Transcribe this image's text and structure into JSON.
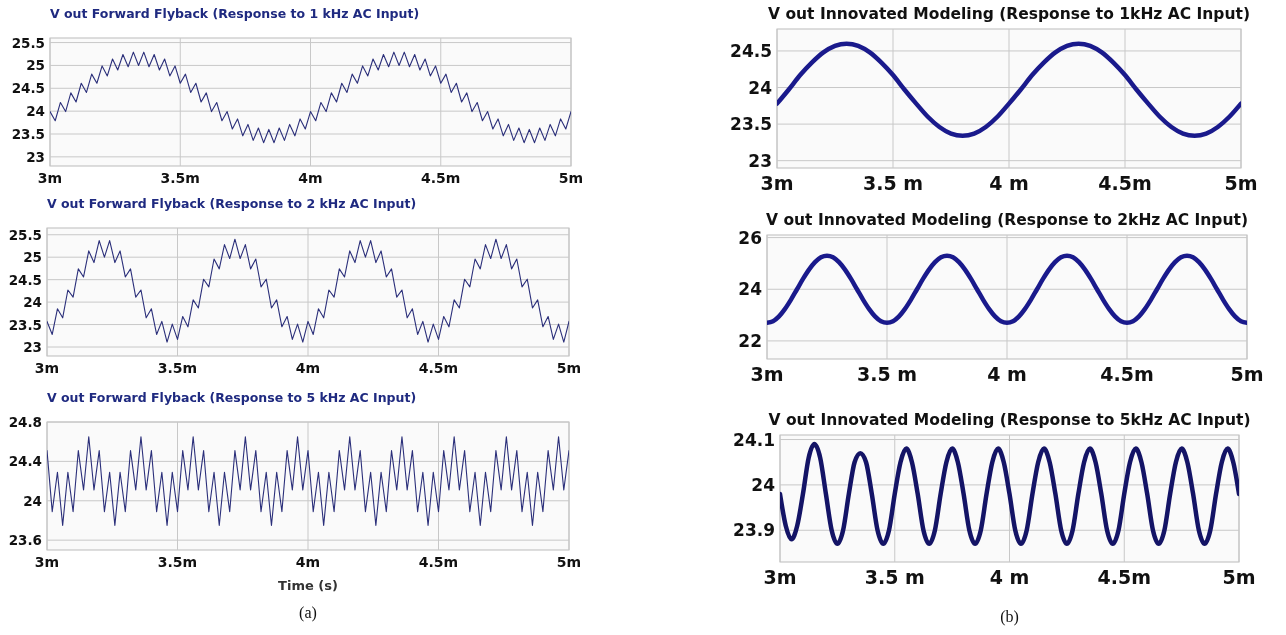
{
  "chart_data": [
    {
      "type": "line",
      "title": "V out Forward Flyback (Response to 1 kHz AC Input)",
      "grid": true,
      "xlim": [
        3,
        5
      ],
      "ylim": [
        22.8,
        25.6
      ],
      "xticks": [
        {
          "value": 3,
          "label": "3m"
        },
        {
          "value": 3.5,
          "label": "3.5m"
        },
        {
          "value": 4,
          "label": "4m"
        },
        {
          "value": 4.5,
          "label": "4.5m"
        },
        {
          "value": 5,
          "label": "5m"
        }
      ],
      "yticks": [
        23,
        23.5,
        24,
        24.5,
        25,
        25.5
      ],
      "x": [
        3,
        3.02,
        3.04,
        3.06,
        3.08,
        3.1,
        3.12,
        3.14,
        3.16,
        3.18,
        3.2,
        3.22,
        3.24,
        3.26,
        3.28,
        3.3,
        3.32,
        3.34,
        3.36,
        3.38,
        3.4,
        3.42,
        3.44,
        3.46,
        3.48,
        3.5,
        3.52,
        3.54,
        3.56,
        3.58,
        3.6,
        3.62,
        3.64,
        3.66,
        3.68,
        3.7,
        3.72,
        3.74,
        3.76,
        3.78,
        3.8,
        3.82,
        3.84,
        3.86,
        3.88,
        3.9,
        3.92,
        3.94,
        3.96,
        3.98,
        4,
        4.02,
        4.04,
        4.06,
        4.08,
        4.1,
        4.12,
        4.14,
        4.16,
        4.18,
        4.2,
        4.22,
        4.24,
        4.26,
        4.28,
        4.3,
        4.32,
        4.34,
        4.36,
        4.38,
        4.4,
        4.42,
        4.44,
        4.46,
        4.48,
        4.5,
        4.52,
        4.54,
        4.56,
        4.58,
        4.6,
        4.62,
        4.64,
        4.66,
        4.68,
        4.7,
        4.72,
        4.74,
        4.76,
        4.78,
        4.8,
        4.82,
        4.84,
        4.86,
        4.88,
        4.9,
        4.92,
        4.94,
        4.96,
        4.98,
        5
      ],
      "series": [
        {
          "color": "#2b2f7a",
          "values": [
            23.99,
            23.79,
            24.19,
            23.99,
            24.4,
            24.2,
            24.61,
            24.41,
            24.81,
            24.61,
            24.99,
            24.77,
            25.14,
            24.9,
            25.24,
            24.97,
            25.29,
            25.0,
            25.29,
            24.97,
            25.24,
            24.9,
            25.14,
            24.77,
            24.99,
            24.61,
            24.81,
            24.41,
            24.61,
            24.2,
            24.4,
            23.99,
            24.19,
            23.79,
            23.99,
            23.61,
            23.83,
            23.46,
            23.71,
            23.36,
            23.63,
            23.31,
            23.6,
            23.31,
            23.63,
            23.36,
            23.71,
            23.46,
            23.83,
            23.61,
            23.99,
            23.79,
            24.19,
            23.99,
            24.4,
            24.2,
            24.61,
            24.41,
            24.81,
            24.61,
            24.99,
            24.77,
            25.14,
            24.9,
            25.24,
            24.97,
            25.29,
            25.0,
            25.29,
            24.97,
            25.24,
            24.9,
            25.14,
            24.77,
            24.99,
            24.61,
            24.81,
            24.41,
            24.61,
            24.2,
            24.4,
            23.99,
            24.19,
            23.79,
            23.99,
            23.61,
            23.83,
            23.46,
            23.71,
            23.36,
            23.63,
            23.31,
            23.6,
            23.31,
            23.63,
            23.36,
            23.71,
            23.46,
            23.83,
            23.61,
            23.99
          ]
        }
      ]
    },
    {
      "type": "line",
      "title": "V out Forward Flyback (Response to 2 kHz AC Input)",
      "grid": true,
      "xlim": [
        3,
        5
      ],
      "ylim": [
        22.8,
        25.65
      ],
      "xticks": [
        {
          "value": 3,
          "label": "3m"
        },
        {
          "value": 3.5,
          "label": "3.5m"
        },
        {
          "value": 4,
          "label": "4m"
        },
        {
          "value": 4.5,
          "label": "4.5m"
        },
        {
          "value": 5,
          "label": "5m"
        }
      ],
      "yticks": [
        23,
        23.5,
        24,
        24.5,
        25,
        25.5
      ],
      "x": [
        3,
        3.02,
        3.04,
        3.06,
        3.08,
        3.1,
        3.12,
        3.14,
        3.16,
        3.18,
        3.2,
        3.22,
        3.24,
        3.26,
        3.28,
        3.3,
        3.32,
        3.34,
        3.36,
        3.38,
        3.4,
        3.42,
        3.44,
        3.46,
        3.48,
        3.5,
        3.52,
        3.54,
        3.56,
        3.58,
        3.6,
        3.62,
        3.64,
        3.66,
        3.68,
        3.7,
        3.72,
        3.74,
        3.76,
        3.78,
        3.8,
        3.82,
        3.84,
        3.86,
        3.88,
        3.9,
        3.92,
        3.94,
        3.96,
        3.98,
        4,
        4.02,
        4.04,
        4.06,
        4.08,
        4.1,
        4.12,
        4.14,
        4.16,
        4.18,
        4.2,
        4.22,
        4.24,
        4.26,
        4.28,
        4.3,
        4.32,
        4.34,
        4.36,
        4.38,
        4.4,
        4.42,
        4.44,
        4.46,
        4.48,
        4.5,
        4.52,
        4.54,
        4.56,
        4.58,
        4.6,
        4.62,
        4.64,
        4.66,
        4.68,
        4.7,
        4.72,
        4.74,
        4.76,
        4.78,
        4.8,
        4.82,
        4.84,
        4.86,
        4.88,
        4.9,
        4.92,
        4.94,
        4.96,
        4.98,
        5
      ],
      "series": [
        {
          "color": "#2b2f7a",
          "values": [
            23.57,
            23.28,
            23.85,
            23.65,
            24.27,
            24.11,
            24.74,
            24.56,
            25.14,
            24.88,
            25.37,
            25.0,
            25.37,
            24.88,
            25.14,
            24.56,
            24.74,
            24.11,
            24.27,
            23.65,
            23.85,
            23.28,
            23.57,
            23.11,
            23.51,
            23.17,
            23.68,
            23.45,
            24.05,
            23.87,
            24.51,
            24.34,
            24.96,
            24.74,
            25.28,
            24.97,
            25.4,
            24.97,
            25.28,
            24.74,
            24.96,
            24.34,
            24.51,
            23.87,
            24.05,
            23.45,
            23.68,
            23.17,
            23.51,
            23.11,
            23.57,
            23.28,
            23.85,
            23.65,
            24.27,
            24.11,
            24.74,
            24.56,
            25.14,
            24.88,
            25.37,
            25.0,
            25.37,
            24.88,
            25.14,
            24.56,
            24.74,
            24.11,
            24.27,
            23.65,
            23.85,
            23.28,
            23.57,
            23.11,
            23.51,
            23.17,
            23.68,
            23.45,
            24.05,
            23.87,
            24.51,
            24.34,
            24.96,
            24.74,
            25.28,
            24.97,
            25.4,
            24.97,
            25.28,
            24.74,
            24.96,
            24.34,
            24.51,
            23.87,
            24.05,
            23.45,
            23.68,
            23.17,
            23.51,
            23.11,
            23.57
          ]
        }
      ]
    },
    {
      "type": "line",
      "title": "V out Forward Flyback (Response to 5 kHz AC Input)",
      "xlabel": "Time (s)",
      "annotations": [
        "(a)"
      ],
      "grid": true,
      "xlim": [
        3,
        5
      ],
      "ylim": [
        23.5,
        24.8
      ],
      "xticks": [
        {
          "value": 3,
          "label": "3m"
        },
        {
          "value": 3.5,
          "label": "3.5m"
        },
        {
          "value": 4,
          "label": "4m"
        },
        {
          "value": 4.5,
          "label": "4.5m"
        },
        {
          "value": 5,
          "label": "5m"
        }
      ],
      "yticks": [
        23.6,
        24,
        24.4,
        24.8
      ],
      "x": [
        3,
        3.02,
        3.04,
        3.06,
        3.08,
        3.1,
        3.12,
        3.14,
        3.16,
        3.18,
        3.2,
        3.22,
        3.24,
        3.26,
        3.28,
        3.3,
        3.32,
        3.34,
        3.36,
        3.38,
        3.4,
        3.42,
        3.44,
        3.46,
        3.48,
        3.5,
        3.52,
        3.54,
        3.56,
        3.58,
        3.6,
        3.62,
        3.64,
        3.66,
        3.68,
        3.7,
        3.72,
        3.74,
        3.76,
        3.78,
        3.8,
        3.82,
        3.84,
        3.86,
        3.88,
        3.9,
        3.92,
        3.94,
        3.96,
        3.98,
        4,
        4.02,
        4.04,
        4.06,
        4.08,
        4.1,
        4.12,
        4.14,
        4.16,
        4.18,
        4.2,
        4.22,
        4.24,
        4.26,
        4.28,
        4.3,
        4.32,
        4.34,
        4.36,
        4.38,
        4.4,
        4.42,
        4.44,
        4.46,
        4.48,
        4.5,
        4.52,
        4.54,
        4.56,
        4.58,
        4.6,
        4.62,
        4.64,
        4.66,
        4.68,
        4.7,
        4.72,
        4.74,
        4.76,
        4.78,
        4.8,
        4.82,
        4.84,
        4.86,
        4.88,
        4.9,
        4.92,
        4.94,
        4.96,
        4.98,
        5
      ],
      "series": [
        {
          "color": "#2b2f7a",
          "values": [
            24.51,
            23.89,
            24.29,
            23.75,
            24.29,
            23.89,
            24.51,
            24.11,
            24.65,
            24.11,
            24.51,
            23.89,
            24.29,
            23.75,
            24.29,
            23.89,
            24.51,
            24.11,
            24.65,
            24.11,
            24.51,
            23.89,
            24.29,
            23.75,
            24.29,
            23.89,
            24.51,
            24.11,
            24.65,
            24.11,
            24.51,
            23.89,
            24.29,
            23.75,
            24.29,
            23.89,
            24.51,
            24.11,
            24.65,
            24.11,
            24.51,
            23.89,
            24.29,
            23.75,
            24.29,
            23.89,
            24.51,
            24.11,
            24.65,
            24.11,
            24.51,
            23.89,
            24.29,
            23.75,
            24.29,
            23.89,
            24.51,
            24.11,
            24.65,
            24.11,
            24.51,
            23.89,
            24.29,
            23.75,
            24.29,
            23.89,
            24.51,
            24.11,
            24.65,
            24.11,
            24.51,
            23.89,
            24.29,
            23.75,
            24.29,
            23.89,
            24.51,
            24.11,
            24.65,
            24.11,
            24.51,
            23.89,
            24.29,
            23.75,
            24.29,
            23.89,
            24.51,
            24.11,
            24.65,
            24.11,
            24.51,
            23.89,
            24.29,
            23.75,
            24.29,
            23.89,
            24.51,
            24.11,
            24.65,
            24.11,
            24.51
          ]
        }
      ]
    },
    {
      "type": "line",
      "title": "V out Innovated Modeling (Response to 1kHz AC Input)",
      "grid": true,
      "xlim": [
        3,
        5
      ],
      "ylim": [
        22.9,
        24.8
      ],
      "xticks": [
        {
          "value": 3,
          "label": "3m"
        },
        {
          "value": 3.5,
          "label": "3.5 m"
        },
        {
          "value": 4,
          "label": "4 m"
        },
        {
          "value": 4.5,
          "label": "4.5m"
        },
        {
          "value": 5,
          "label": "5m"
        }
      ],
      "yticks": [
        23,
        23.5,
        24,
        24.5
      ],
      "x": [
        3,
        3.05,
        3.1,
        3.15,
        3.2,
        3.25,
        3.3,
        3.35,
        3.4,
        3.45,
        3.5,
        3.55,
        3.6,
        3.65,
        3.7,
        3.75,
        3.8,
        3.85,
        3.9,
        3.95,
        4,
        4.05,
        4.1,
        4.15,
        4.2,
        4.25,
        4.3,
        4.35,
        4.4,
        4.45,
        4.5,
        4.55,
        4.6,
        4.65,
        4.7,
        4.75,
        4.8,
        4.85,
        4.9,
        4.95,
        5
      ],
      "series": [
        {
          "color": "#1a1a8c",
          "values": [
            23.78,
            23.97,
            24.17,
            24.34,
            24.48,
            24.57,
            24.6,
            24.57,
            24.48,
            24.34,
            24.17,
            23.97,
            23.78,
            23.6,
            23.46,
            23.37,
            23.34,
            23.37,
            23.46,
            23.6,
            23.78,
            23.97,
            24.17,
            24.34,
            24.48,
            24.57,
            24.6,
            24.57,
            24.48,
            24.34,
            24.17,
            23.97,
            23.78,
            23.6,
            23.46,
            23.37,
            23.34,
            23.37,
            23.46,
            23.6,
            23.78
          ]
        }
      ]
    },
    {
      "type": "line",
      "title": "V out Innovated Modeling (Response to 2kHz AC Input)",
      "grid": true,
      "xlim": [
        3,
        5
      ],
      "ylim": [
        21.3,
        26.1
      ],
      "xticks": [
        {
          "value": 3,
          "label": "3m"
        },
        {
          "value": 3.5,
          "label": "3.5 m"
        },
        {
          "value": 4,
          "label": "4 m"
        },
        {
          "value": 4.5,
          "label": "4.5m"
        },
        {
          "value": 5,
          "label": "5m"
        }
      ],
      "yticks": [
        22,
        24,
        26
      ],
      "x": [
        3,
        3.025,
        3.05,
        3.075,
        3.1,
        3.125,
        3.15,
        3.175,
        3.2,
        3.225,
        3.25,
        3.275,
        3.3,
        3.325,
        3.35,
        3.375,
        3.4,
        3.425,
        3.45,
        3.475,
        3.5,
        3.525,
        3.55,
        3.575,
        3.6,
        3.625,
        3.65,
        3.675,
        3.7,
        3.725,
        3.75,
        3.775,
        3.8,
        3.825,
        3.85,
        3.875,
        3.9,
        3.925,
        3.95,
        3.975,
        4,
        4.025,
        4.05,
        4.075,
        4.1,
        4.125,
        4.15,
        4.175,
        4.2,
        4.225,
        4.25,
        4.275,
        4.3,
        4.325,
        4.35,
        4.375,
        4.4,
        4.425,
        4.45,
        4.475,
        4.5,
        4.525,
        4.55,
        4.575,
        4.6,
        4.625,
        4.65,
        4.675,
        4.7,
        4.725,
        4.75,
        4.775,
        4.8,
        4.825,
        4.85,
        4.875,
        4.9,
        4.925,
        4.95,
        4.975,
        5
      ],
      "series": [
        {
          "color": "#1a1a8c",
          "values": [
            22.7,
            22.76,
            22.95,
            23.24,
            23.6,
            24.0,
            24.4,
            24.76,
            25.05,
            25.24,
            25.3,
            25.24,
            25.05,
            24.76,
            24.4,
            24.0,
            23.6,
            23.24,
            22.95,
            22.76,
            22.7,
            22.76,
            22.95,
            23.24,
            23.6,
            24.0,
            24.4,
            24.76,
            25.05,
            25.24,
            25.3,
            25.24,
            25.05,
            24.76,
            24.4,
            24.0,
            23.6,
            23.24,
            22.95,
            22.76,
            22.7,
            22.76,
            22.95,
            23.24,
            23.6,
            24.0,
            24.4,
            24.76,
            25.05,
            25.24,
            25.3,
            25.24,
            25.05,
            24.76,
            24.4,
            24.0,
            23.6,
            23.24,
            22.95,
            22.76,
            22.7,
            22.76,
            22.95,
            23.24,
            23.6,
            24.0,
            24.4,
            24.76,
            25.05,
            25.24,
            25.3,
            25.24,
            25.05,
            24.76,
            24.4,
            24.0,
            23.6,
            23.24,
            22.95,
            22.76,
            22.7
          ]
        }
      ]
    },
    {
      "type": "line",
      "title": "V out Innovated Modeling (Response to 5kHz AC Input)",
      "annotations": [
        "(b)"
      ],
      "grid": true,
      "xlim": [
        3,
        5
      ],
      "ylim": [
        23.83,
        24.11
      ],
      "xticks": [
        {
          "value": 3,
          "label": "3m"
        },
        {
          "value": 3.5,
          "label": "3.5 m"
        },
        {
          "value": 4,
          "label": "4 m"
        },
        {
          "value": 4.5,
          "label": "4.5m"
        },
        {
          "value": 5,
          "label": "5m"
        }
      ],
      "yticks": [
        23.9,
        24,
        24.1
      ],
      "x": [
        3,
        3.025,
        3.05,
        3.075,
        3.1,
        3.125,
        3.15,
        3.175,
        3.2,
        3.225,
        3.25,
        3.275,
        3.3,
        3.325,
        3.35,
        3.375,
        3.4,
        3.425,
        3.45,
        3.475,
        3.5,
        3.525,
        3.55,
        3.575,
        3.6,
        3.625,
        3.65,
        3.675,
        3.7,
        3.725,
        3.75,
        3.775,
        3.8,
        3.825,
        3.85,
        3.875,
        3.9,
        3.925,
        3.95,
        3.975,
        4,
        4.025,
        4.05,
        4.075,
        4.1,
        4.125,
        4.15,
        4.175,
        4.2,
        4.225,
        4.25,
        4.275,
        4.3,
        4.325,
        4.35,
        4.375,
        4.4,
        4.425,
        4.45,
        4.475,
        4.5,
        4.525,
        4.55,
        4.575,
        4.6,
        4.625,
        4.65,
        4.675,
        4.7,
        4.725,
        4.75,
        4.775,
        4.8,
        4.825,
        4.85,
        4.875,
        4.9,
        4.925,
        4.95,
        4.975,
        5
      ],
      "series": [
        {
          "color": "#141466",
          "values": [
            23.98,
            23.91,
            23.88,
            23.91,
            23.98,
            24.06,
            24.09,
            24.06,
            23.98,
            23.9,
            23.87,
            23.9,
            23.98,
            24.05,
            24.07,
            24.05,
            23.98,
            23.9,
            23.87,
            23.9,
            23.98,
            24.05,
            24.08,
            24.05,
            23.98,
            23.9,
            23.87,
            23.9,
            23.98,
            24.05,
            24.08,
            24.05,
            23.98,
            23.9,
            23.87,
            23.9,
            23.98,
            24.05,
            24.08,
            24.05,
            23.98,
            23.9,
            23.87,
            23.9,
            23.98,
            24.05,
            24.08,
            24.05,
            23.98,
            23.9,
            23.87,
            23.9,
            23.98,
            24.05,
            24.08,
            24.05,
            23.98,
            23.9,
            23.87,
            23.9,
            23.98,
            24.05,
            24.08,
            24.05,
            23.98,
            23.9,
            23.87,
            23.9,
            23.98,
            24.05,
            24.08,
            24.05,
            23.98,
            23.9,
            23.87,
            23.9,
            23.98,
            24.05,
            24.08,
            24.05,
            23.98
          ]
        }
      ]
    }
  ]
}
